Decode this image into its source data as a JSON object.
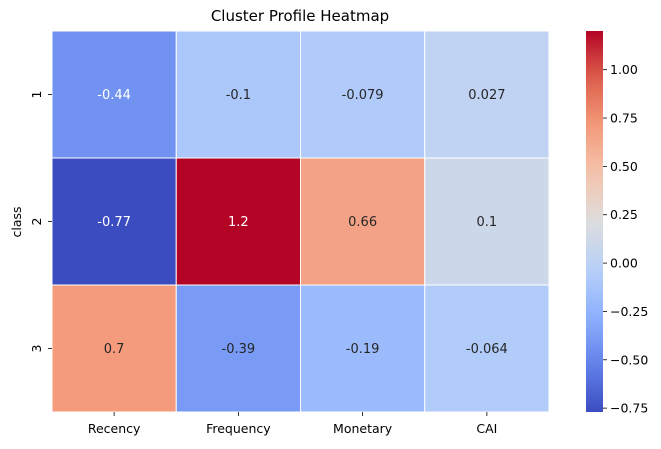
{
  "chart_data": {
    "type": "heatmap",
    "title": "Cluster Profile Heatmap",
    "xlabel": "",
    "ylabel": "class",
    "x_categories": [
      "Recency",
      "Frequency",
      "Monetary",
      "CAI"
    ],
    "y_categories": [
      "1",
      "2",
      "3"
    ],
    "values": [
      [
        -0.44,
        -0.1,
        -0.079,
        0.027
      ],
      [
        -0.77,
        1.2,
        0.66,
        0.1
      ],
      [
        0.7,
        -0.39,
        -0.19,
        -0.064
      ]
    ],
    "cell_labels": [
      [
        "-0.44",
        "-0.1",
        "-0.079",
        "0.027"
      ],
      [
        "-0.77",
        "1.2",
        "0.66",
        "0.1"
      ],
      [
        "0.7",
        "-0.39",
        "-0.19",
        "-0.064"
      ]
    ],
    "colormap": "coolwarm",
    "vmin": -0.77,
    "vmax": 1.2,
    "colorbar": {
      "ticks": [
        -0.75,
        -0.5,
        -0.25,
        0.0,
        0.25,
        0.5,
        0.75,
        1.0
      ],
      "tick_labels": [
        "−0.75",
        "−0.50",
        "−0.25",
        "0.00",
        "0.25",
        "0.50",
        "0.75",
        "1.00"
      ],
      "placement": "right"
    },
    "grid": false
  }
}
